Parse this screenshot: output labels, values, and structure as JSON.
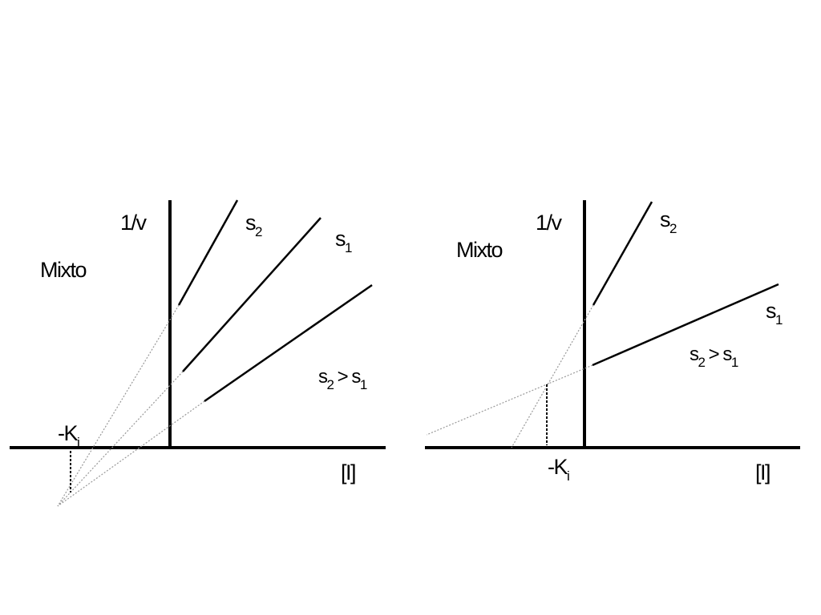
{
  "panels": [
    {
      "title": "Mixto",
      "y_label": "1/v",
      "x_label": "[I]",
      "ki": {
        "base": "-K",
        "sub": "i"
      },
      "s2_label": {
        "base": "s",
        "sub": "2"
      },
      "s1_label": {
        "base": "s",
        "sub": "1"
      },
      "condition": {
        "parts": [
          "s",
          "2",
          " > s",
          "1"
        ]
      }
    },
    {
      "title": "Mixto",
      "y_label": "1/v",
      "x_label": "[I]",
      "ki": {
        "base": "-K",
        "sub": "i"
      },
      "s2_label": {
        "base": "s",
        "sub": "2"
      },
      "s1_label": {
        "base": "s",
        "sub": "1"
      },
      "condition": {
        "parts": [
          "s",
          "2",
          " > s",
          "1"
        ]
      }
    }
  ]
}
